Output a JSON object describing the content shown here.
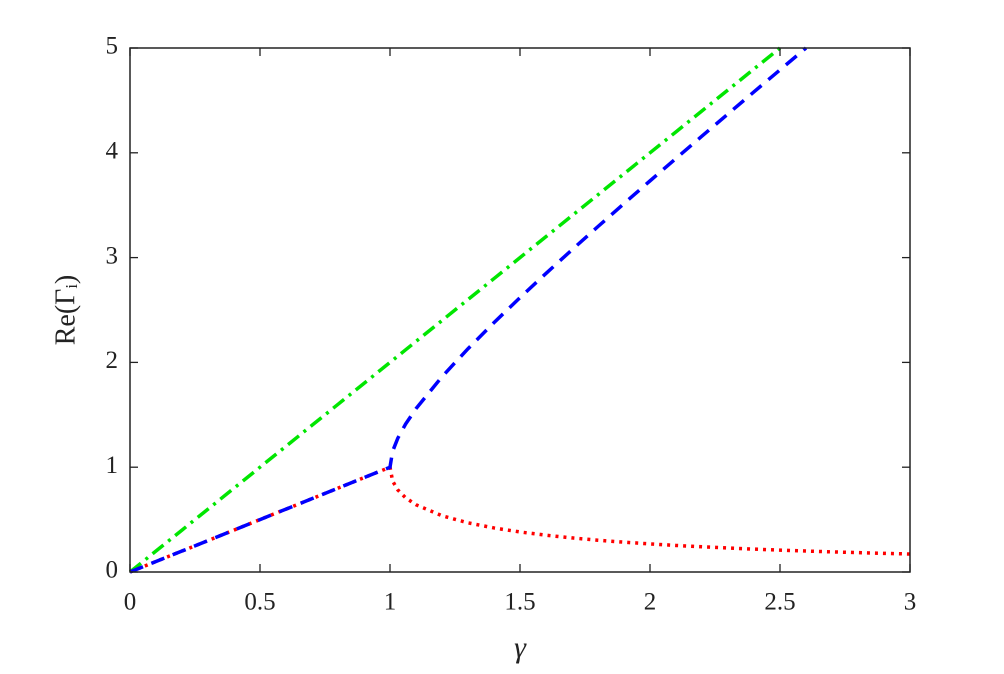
{
  "chart_data": {
    "type": "line",
    "xlabel": "γ",
    "ylabel": "Re(Γᵢ)",
    "x": [
      0,
      0.1,
      0.2,
      0.3,
      0.4,
      0.5,
      0.6,
      0.7,
      0.8,
      0.9,
      1,
      1.01,
      1.03,
      1.06,
      1.1,
      1.2,
      1.3,
      1.4,
      1.5,
      1.6,
      1.7,
      1.8,
      1.9,
      2.0,
      2.1,
      2.2,
      2.3,
      2.4,
      2.5,
      2.6,
      2.7,
      2.8,
      2.9,
      3.0
    ],
    "series": [
      {
        "color": "#00e600",
        "dash": "dashdot",
        "values": [
          0,
          0.2,
          0.4,
          0.6,
          0.8,
          1.0,
          1.2,
          1.4,
          1.6,
          1.8,
          2.0,
          2.02,
          2.06,
          2.12,
          2.2,
          2.4,
          2.6,
          2.8,
          3.0,
          3.2,
          3.4,
          3.6,
          3.8,
          4.0,
          4.2,
          4.4,
          4.6,
          4.8,
          5.0,
          null,
          null,
          null,
          null,
          null
        ]
      },
      {
        "color": "#ff0000",
        "dash": "dotted",
        "values": [
          0,
          0.1,
          0.2,
          0.3,
          0.4,
          0.5,
          0.6,
          0.7,
          0.8,
          0.9,
          1,
          0.8682,
          0.7832,
          0.7084,
          0.6417,
          0.5367,
          0.4693,
          0.4202,
          0.382,
          0.351,
          0.3252,
          0.3033,
          0.2845,
          0.2679,
          0.2534,
          0.2404,
          0.2288,
          0.2183,
          0.2087,
          0.2,
          0.192,
          0.1847,
          0.1779,
          0.1716
        ]
      },
      {
        "color": "#0000ff",
        "dash": "dashed",
        "values": [
          0,
          0.1,
          0.2,
          0.3,
          0.4,
          0.5,
          0.6,
          0.7,
          0.8,
          0.9,
          1,
          1.1518,
          1.2768,
          1.4116,
          1.5583,
          1.8633,
          2.1307,
          2.3798,
          2.618,
          2.849,
          3.0748,
          3.2967,
          3.5155,
          3.7321,
          3.9466,
          4.1596,
          4.3712,
          4.5817,
          4.7913,
          5.0,
          null,
          null,
          null,
          null
        ]
      }
    ],
    "xlim": [
      0,
      3
    ],
    "ylim": [
      0,
      5
    ],
    "xticks": [
      0,
      0.5,
      1,
      1.5,
      2,
      2.5,
      3
    ],
    "yticks": [
      0,
      1,
      2,
      3,
      4,
      5
    ]
  }
}
